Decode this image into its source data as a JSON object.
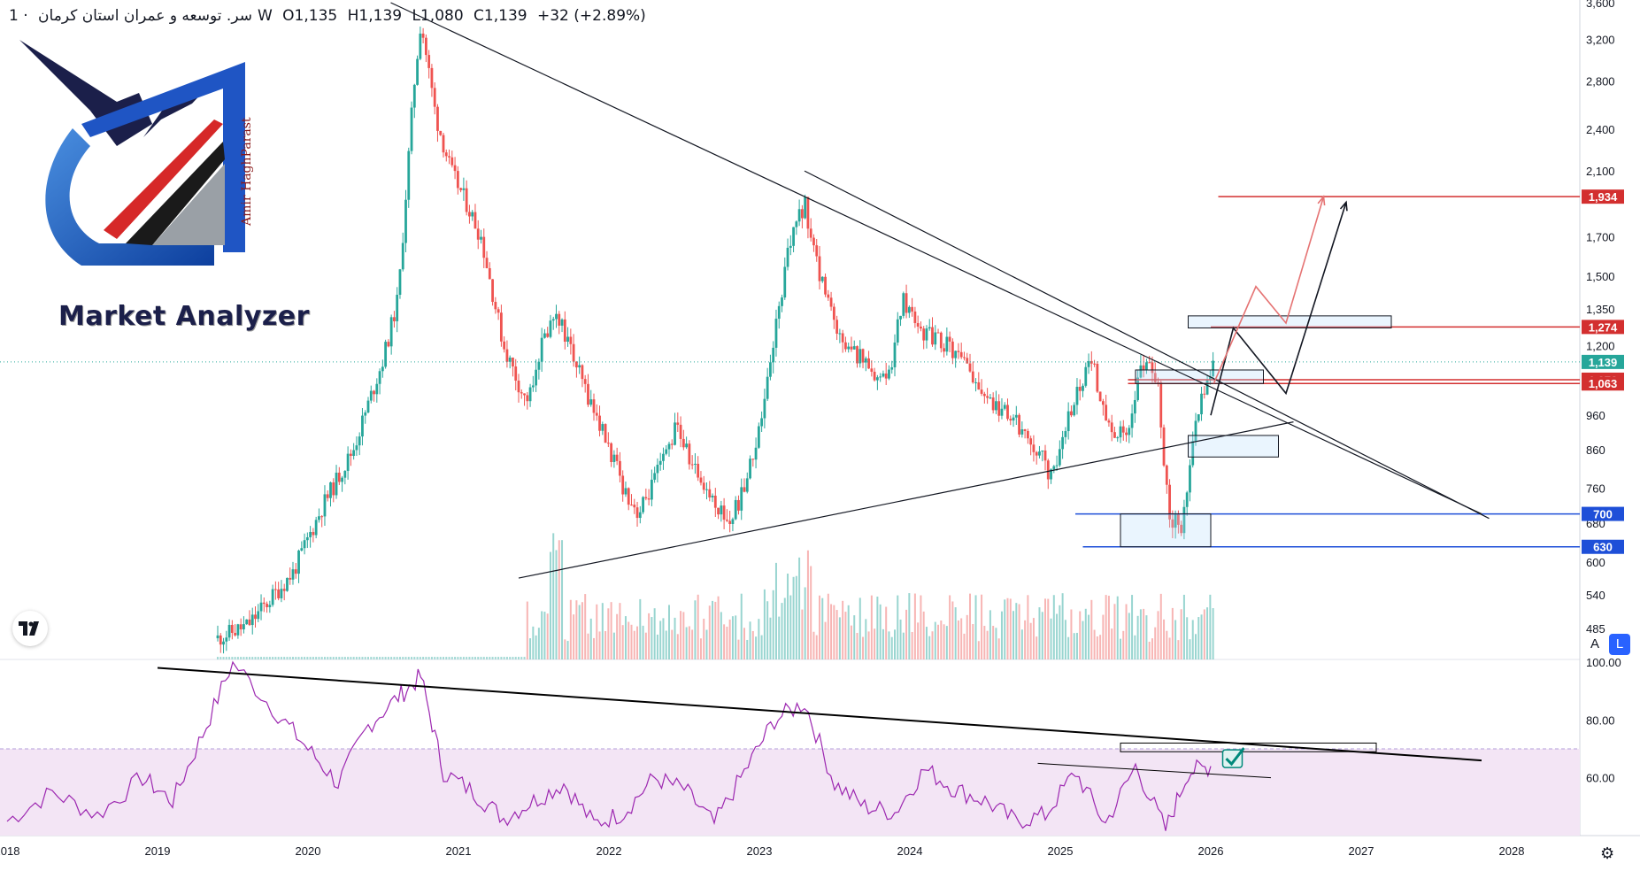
{
  "header": {
    "symbol": "سر. توسعه و عمران استان کرمان",
    "separator": "·",
    "interval": "1W",
    "open": "O1,135",
    "high": "H1,139",
    "low": "L1,080",
    "close": "C1,139",
    "change": "+32 (+2.89%)"
  },
  "logo": {
    "text": "Market Analyzer",
    "author": "Amir HaghParast"
  },
  "controls": {
    "badge_icon": "tradingview-logo-icon",
    "auto": "A",
    "log": "L",
    "settings_icon": "gear-icon"
  },
  "colors": {
    "up": "#26a69a",
    "down": "#ef5350",
    "resistance": "#d32f2f",
    "support": "#1e4fd8",
    "rsi_line": "#9c27b0",
    "rsi_band": "#f3e5f5",
    "price_tag": "#26a69a"
  },
  "chart_data": [
    {
      "type": "candlestick",
      "scale": "log",
      "ylim": [
        450,
        3600
      ],
      "x_ticks": [
        "2018",
        "2019",
        "2020",
        "2021",
        "2022",
        "2023",
        "2024",
        "2025",
        "2026",
        "2027",
        "2028"
      ],
      "y_ticks": [
        "3,600",
        "3,200",
        "2,800",
        "2,400",
        "2,100",
        "1,700",
        "1,500",
        "1,350",
        "1,200",
        "960",
        "860",
        "760",
        "680",
        "600",
        "540",
        "485"
      ],
      "price_levels": [
        {
          "value": 1934,
          "label": "1,934",
          "role": "resistance"
        },
        {
          "value": 1274,
          "label": "1,274",
          "role": "resistance"
        },
        {
          "value": 1139,
          "label": "1,139",
          "role": "last-price"
        },
        {
          "value": 1076,
          "label": "1,076",
          "role": "resistance"
        },
        {
          "value": 1063,
          "label": "1,063",
          "role": "resistance"
        },
        {
          "value": 700,
          "label": "700",
          "role": "support"
        },
        {
          "value": 630,
          "label": "630",
          "role": "support"
        }
      ],
      "close_path": [
        [
          2019.4,
          470
        ],
        [
          2019.6,
          490
        ],
        [
          2019.9,
          580
        ],
        [
          2020.1,
          720
        ],
        [
          2020.3,
          860
        ],
        [
          2020.5,
          1150
        ],
        [
          2020.6,
          1400
        ],
        [
          2020.7,
          2700
        ],
        [
          2020.75,
          3400
        ],
        [
          2020.85,
          2500
        ],
        [
          2020.95,
          2100
        ],
        [
          2021.05,
          1900
        ],
        [
          2021.15,
          1700
        ],
        [
          2021.3,
          1200
        ],
        [
          2021.45,
          1000
        ],
        [
          2021.55,
          1200
        ],
        [
          2021.65,
          1350
        ],
        [
          2021.8,
          1100
        ],
        [
          2021.95,
          920
        ],
        [
          2022.1,
          760
        ],
        [
          2022.2,
          700
        ],
        [
          2022.35,
          820
        ],
        [
          2022.45,
          930
        ],
        [
          2022.55,
          820
        ],
        [
          2022.7,
          730
        ],
        [
          2022.8,
          680
        ],
        [
          2022.9,
          760
        ],
        [
          2023.0,
          920
        ],
        [
          2023.1,
          1250
        ],
        [
          2023.2,
          1650
        ],
        [
          2023.3,
          1900
        ],
        [
          2023.4,
          1500
        ],
        [
          2023.55,
          1200
        ],
        [
          2023.7,
          1150
        ],
        [
          2023.85,
          1050
        ],
        [
          2023.95,
          1400
        ],
        [
          2024.1,
          1250
        ],
        [
          2024.25,
          1200
        ],
        [
          2024.4,
          1100
        ],
        [
          2024.55,
          1000
        ],
        [
          2024.7,
          940
        ],
        [
          2024.85,
          860
        ],
        [
          2024.95,
          780
        ],
        [
          2025.05,
          960
        ],
        [
          2025.2,
          1150
        ],
        [
          2025.35,
          900
        ],
        [
          2025.45,
          900
        ],
        [
          2025.55,
          1150
        ],
        [
          2025.65,
          1050
        ],
        [
          2025.72,
          700
        ],
        [
          2025.8,
          670
        ],
        [
          2025.85,
          760
        ],
        [
          2025.9,
          960
        ],
        [
          2025.97,
          1080
        ],
        [
          2026.02,
          1139
        ]
      ],
      "projection_black": [
        [
          2026.0,
          960
        ],
        [
          2026.15,
          1270
        ],
        [
          2026.5,
          1030
        ],
        [
          2026.9,
          1900
        ]
      ],
      "projection_red": [
        [
          2026.02,
          1063
        ],
        [
          2026.3,
          1450
        ],
        [
          2026.5,
          1290
        ],
        [
          2026.75,
          1934
        ]
      ],
      "zones": [
        {
          "x": [
            2025.5,
            2026.35
          ],
          "y": [
            1063,
            1110
          ]
        },
        {
          "x": [
            2025.85,
            2026.45
          ],
          "y": [
            840,
            900
          ]
        },
        {
          "x": [
            2025.4,
            2026.0
          ],
          "y": [
            630,
            700
          ]
        },
        {
          "x": [
            2025.85,
            2027.2
          ],
          "y": [
            1270,
            1320
          ]
        }
      ],
      "trendlines": [
        {
          "from": [
            2020.55,
            3600
          ],
          "to": [
            2027.8,
            700
          ]
        },
        {
          "from": [
            2023.3,
            2100
          ],
          "to": [
            2027.85,
            690
          ]
        },
        {
          "from": [
            2021.4,
            570
          ],
          "to": [
            2026.55,
            940
          ]
        }
      ]
    },
    {
      "type": "bar",
      "name": "volume",
      "note_units": "relative"
    },
    {
      "type": "line",
      "name": "RSI",
      "ylim": [
        40,
        100
      ],
      "y_ticks": [
        "100.00",
        "80.00",
        "60.00"
      ],
      "band": [
        40,
        70
      ],
      "points": [
        [
          2018.0,
          45
        ],
        [
          2018.3,
          55
        ],
        [
          2018.6,
          47
        ],
        [
          2018.9,
          60
        ],
        [
          2019.1,
          52
        ],
        [
          2019.3,
          75
        ],
        [
          2019.5,
          100
        ],
        [
          2019.8,
          82
        ],
        [
          2020.0,
          70
        ],
        [
          2020.2,
          58
        ],
        [
          2020.4,
          78
        ],
        [
          2020.6,
          88
        ],
        [
          2020.75,
          95
        ],
        [
          2020.9,
          62
        ],
        [
          2021.1,
          55
        ],
        [
          2021.3,
          46
        ],
        [
          2021.5,
          52
        ],
        [
          2021.7,
          58
        ],
        [
          2021.9,
          44
        ],
        [
          2022.1,
          48
        ],
        [
          2022.3,
          60
        ],
        [
          2022.5,
          56
        ],
        [
          2022.7,
          44
        ],
        [
          2022.9,
          62
        ],
        [
          2023.1,
          80
        ],
        [
          2023.3,
          86
        ],
        [
          2023.5,
          58
        ],
        [
          2023.7,
          50
        ],
        [
          2023.9,
          48
        ],
        [
          2024.1,
          63
        ],
        [
          2024.3,
          56
        ],
        [
          2024.5,
          52
        ],
        [
          2024.7,
          45
        ],
        [
          2024.9,
          47
        ],
        [
          2025.1,
          62
        ],
        [
          2025.3,
          44
        ],
        [
          2025.5,
          64
        ],
        [
          2025.7,
          42
        ],
        [
          2025.85,
          62
        ],
        [
          2026.0,
          64
        ]
      ],
      "trendlines": [
        {
          "from": [
            2019.0,
            98
          ],
          "to": [
            2027.8,
            66
          ]
        },
        {
          "from": [
            2024.85,
            65
          ],
          "to": [
            2026.4,
            60
          ]
        }
      ],
      "zone": {
        "x": [
          2025.4,
          2027.1
        ],
        "y": [
          69,
          72
        ]
      }
    }
  ]
}
